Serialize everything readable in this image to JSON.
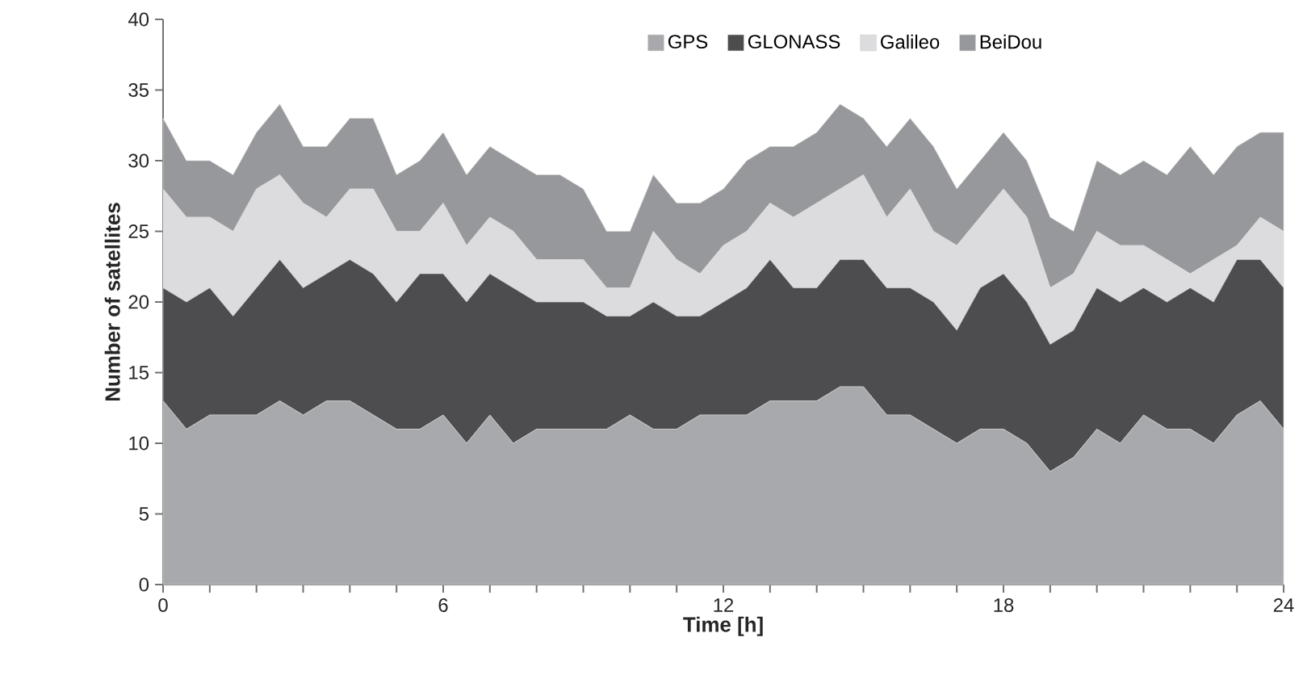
{
  "chart_data": {
    "type": "area",
    "stacked": true,
    "xlabel": "Time [h]",
    "ylabel": "Number of satellites",
    "x": [
      0,
      0.5,
      1,
      1.5,
      2,
      2.5,
      3,
      3.5,
      4,
      4.5,
      5,
      5.5,
      6,
      6.5,
      7,
      7.5,
      8,
      8.5,
      9,
      9.5,
      10,
      10.5,
      11,
      11.5,
      12,
      12.5,
      13,
      13.5,
      14,
      14.5,
      15,
      15.5,
      16,
      16.5,
      17,
      17.5,
      18,
      18.5,
      19,
      19.5,
      20,
      20.5,
      21,
      21.5,
      22,
      22.5,
      23,
      23.5,
      24
    ],
    "series": [
      {
        "name": "GPS",
        "color": "#a8a9ac",
        "values": [
          13,
          11,
          12,
          12,
          12,
          13,
          12,
          13,
          13,
          12,
          11,
          11,
          12,
          10,
          12,
          10,
          11,
          11,
          11,
          11,
          12,
          11,
          11,
          12,
          12,
          12,
          13,
          13,
          13,
          14,
          14,
          12,
          12,
          11,
          10,
          11,
          11,
          10,
          8,
          9,
          11,
          10,
          12,
          11,
          11,
          10,
          12,
          13,
          11
        ]
      },
      {
        "name": "GLONASS",
        "color": "#4d4d4f",
        "values": [
          8,
          9,
          9,
          7,
          9,
          10,
          9,
          9,
          10,
          10,
          9,
          11,
          10,
          10,
          10,
          11,
          9,
          9,
          9,
          8,
          7,
          9,
          8,
          7,
          8,
          9,
          10,
          8,
          8,
          9,
          9,
          9,
          9,
          9,
          8,
          10,
          11,
          10,
          9,
          9,
          10,
          10,
          9,
          9,
          10,
          10,
          11,
          10,
          10
        ]
      },
      {
        "name": "Galileo",
        "color": "#dcdcde",
        "values": [
          7,
          6,
          5,
          6,
          7,
          6,
          6,
          4,
          5,
          6,
          5,
          3,
          5,
          4,
          4,
          4,
          3,
          3,
          3,
          2,
          2,
          5,
          4,
          3,
          4,
          4,
          4,
          5,
          6,
          5,
          6,
          5,
          7,
          5,
          6,
          5,
          6,
          6,
          4,
          4,
          4,
          4,
          3,
          3,
          1,
          3,
          1,
          3,
          4
        ]
      },
      {
        "name": "BeiDou",
        "color": "#97989b",
        "values": [
          5,
          4,
          4,
          4,
          4,
          5,
          4,
          5,
          5,
          5,
          4,
          5,
          5,
          5,
          5,
          5,
          6,
          6,
          5,
          4,
          4,
          4,
          4,
          5,
          4,
          5,
          4,
          5,
          5,
          6,
          4,
          5,
          5,
          6,
          4,
          4,
          4,
          4,
          5,
          3,
          5,
          5,
          6,
          6,
          9,
          6,
          7,
          6,
          7
        ]
      }
    ],
    "xlim": [
      0,
      24
    ],
    "xticks": [
      0,
      {
        "value": 1,
        "label": null
      },
      {
        "value": 2,
        "label": null
      },
      {
        "value": 3,
        "label": null
      },
      {
        "value": 4,
        "label": null
      },
      {
        "value": 5,
        "label": null
      },
      6,
      {
        "value": 7,
        "label": null
      },
      {
        "value": 8,
        "label": null
      },
      {
        "value": 9,
        "label": null
      },
      {
        "value": 10,
        "label": null
      },
      {
        "value": 11,
        "label": null
      },
      12,
      {
        "value": 13,
        "label": null
      },
      {
        "value": 14,
        "label": null
      },
      {
        "value": 15,
        "label": null
      },
      {
        "value": 16,
        "label": null
      },
      {
        "value": 17,
        "label": null
      },
      18,
      {
        "value": 19,
        "label": null
      },
      {
        "value": 20,
        "label": null
      },
      {
        "value": 21,
        "label": null
      },
      {
        "value": 22,
        "label": null
      },
      {
        "value": 23,
        "label": null
      },
      24
    ],
    "ylim": [
      0,
      40
    ],
    "yticks": [
      0,
      5,
      10,
      15,
      20,
      25,
      30,
      35,
      40
    ],
    "grid": false,
    "legend": "top"
  }
}
